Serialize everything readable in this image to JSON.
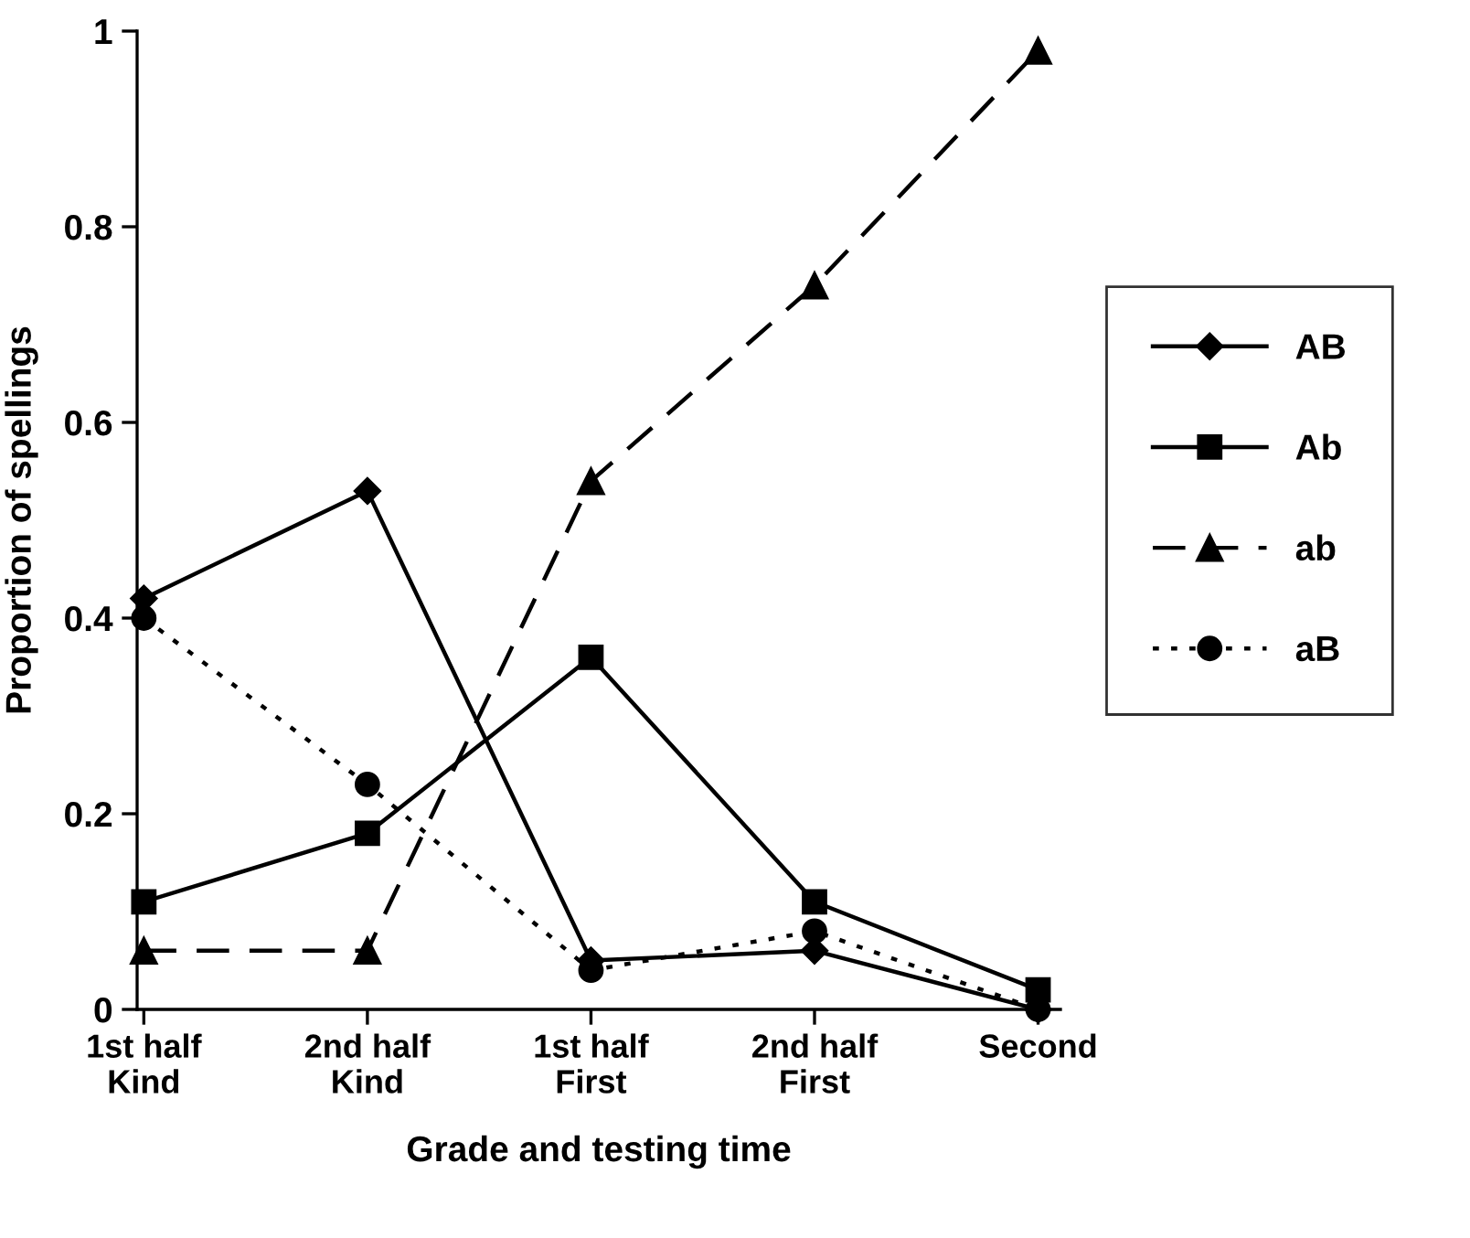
{
  "chart_data": {
    "type": "line",
    "xlabel": "Grade and testing time",
    "ylabel": "Proportion of spellings",
    "categories": [
      "1st half\nKind",
      "2nd half\nKind",
      "1st half\nFirst",
      "2nd half\nFirst",
      "Second"
    ],
    "ylim": [
      0,
      1
    ],
    "yticks": [
      0,
      0.2,
      0.4,
      0.6,
      0.8,
      1
    ],
    "grid": false,
    "legend": "right",
    "series": [
      {
        "name": "AB",
        "color": "#000000",
        "marker": "diamond",
        "line_style": "solid",
        "values": [
          0.42,
          0.53,
          0.05,
          0.06,
          0.0
        ]
      },
      {
        "name": "Ab",
        "color": "#000000",
        "marker": "square",
        "line_style": "solid",
        "values": [
          0.11,
          0.18,
          0.36,
          0.11,
          0.02
        ]
      },
      {
        "name": "ab",
        "color": "#000000",
        "marker": "triangle",
        "line_style": "dashed",
        "values": [
          0.06,
          0.06,
          0.54,
          0.74,
          0.98
        ]
      },
      {
        "name": "aB",
        "color": "#000000",
        "marker": "circle",
        "line_style": "dotted",
        "values": [
          0.4,
          0.23,
          0.04,
          0.08,
          0.0
        ]
      }
    ]
  }
}
